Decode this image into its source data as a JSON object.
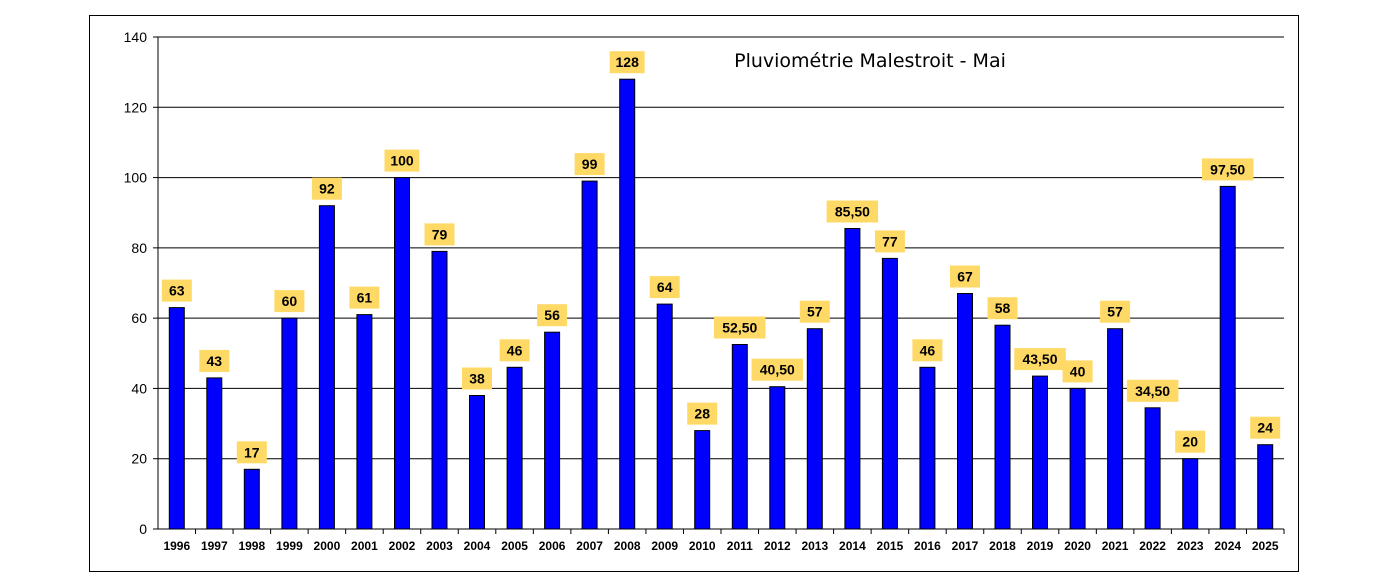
{
  "chart_data": {
    "type": "bar",
    "title": "Pluviométrie Malestroit - Mai",
    "xlabel": "",
    "ylabel": "",
    "ylim": [
      0,
      140
    ],
    "yticks": [
      0,
      20,
      40,
      60,
      80,
      100,
      120,
      140
    ],
    "grid": true,
    "legend": "none",
    "colors": {
      "bar": "#0000FF",
      "bar_outline": "#000000",
      "label_background": "#FFD966",
      "grid": "#000000"
    },
    "categories": [
      "1996",
      "1997",
      "1998",
      "1999",
      "2000",
      "2001",
      "2002",
      "2003",
      "2004",
      "2005",
      "2006",
      "2007",
      "2008",
      "2009",
      "2010",
      "2011",
      "2012",
      "2013",
      "2014",
      "2015",
      "2016",
      "2017",
      "2018",
      "2019",
      "2020",
      "2021",
      "2022",
      "2023",
      "2024",
      "2025"
    ],
    "values": [
      63,
      43,
      17,
      60,
      92,
      61,
      100,
      79,
      38,
      46,
      56,
      99,
      128,
      64,
      28,
      52.5,
      40.5,
      57,
      85.5,
      77,
      46,
      67,
      58,
      43.5,
      40,
      57,
      34.5,
      20,
      97.5,
      24
    ],
    "value_labels": [
      "63",
      "43",
      "17",
      "60",
      "92",
      "61",
      "100",
      "79",
      "38",
      "46",
      "56",
      "99",
      "128",
      "64",
      "28",
      "52,50",
      "40,50",
      "57",
      "85,50",
      "77",
      "46",
      "67",
      "58",
      "43,50",
      "40",
      "57",
      "34,50",
      "20",
      "97,50",
      "24"
    ]
  }
}
